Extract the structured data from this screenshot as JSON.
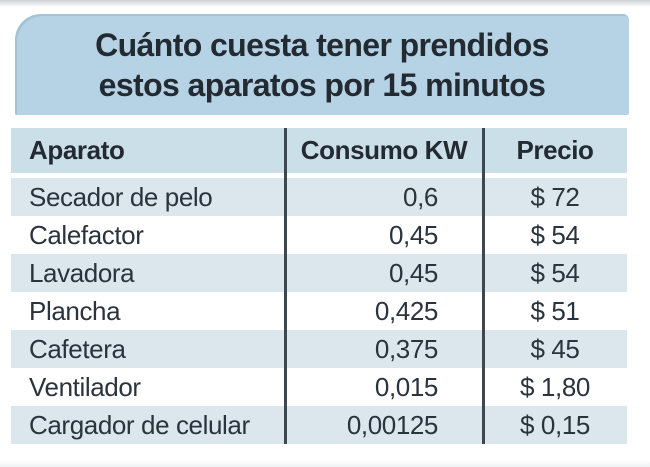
{
  "title": {
    "line1": "Cuánto cuesta tener prendidos",
    "line2": "estos aparatos por 15 minutos"
  },
  "table": {
    "headers": [
      "Aparato",
      "Consumo KW",
      "Precio"
    ],
    "rows": [
      {
        "aparato": "Secador de pelo",
        "consumo": "0,6",
        "precio": "$ 72"
      },
      {
        "aparato": "Calefactor",
        "consumo": "0,45",
        "precio": "$ 54"
      },
      {
        "aparato": "Lavadora",
        "consumo": "0,45",
        "precio": "$ 54"
      },
      {
        "aparato": "Plancha",
        "consumo": "0,425",
        "precio": "$ 51"
      },
      {
        "aparato": "Cafetera",
        "consumo": "0,375",
        "precio": "$ 45"
      },
      {
        "aparato": "Ventilador",
        "consumo": "0,015",
        "precio": "$ 1,80"
      },
      {
        "aparato": "Cargador de celular",
        "consumo": "0,00125",
        "precio": "$ 0,15"
      }
    ]
  },
  "colors": {
    "title_bg": "#b5d3e4",
    "header_bg": "#cbdfe9",
    "row_alt_bg": "#dbe6ed",
    "row_bg": "#ffffff",
    "text_dark": "#232a32",
    "divider": "#3d4750"
  },
  "chart_data": {
    "type": "table",
    "title": "Cuánto cuesta tener prendidos estos aparatos por 15 minutos",
    "columns": [
      "Aparato",
      "Consumo KW",
      "Precio"
    ],
    "rows": [
      [
        "Secador de pelo",
        "0,6",
        "$ 72"
      ],
      [
        "Calefactor",
        "0,45",
        "$ 54"
      ],
      [
        "Lavadora",
        "0,45",
        "$ 54"
      ],
      [
        "Plancha",
        "0,425",
        "$ 51"
      ],
      [
        "Cafetera",
        "0,375",
        "$ 45"
      ],
      [
        "Ventilador",
        "0,015",
        "$ 1,80"
      ],
      [
        "Cargador de celular",
        "0,00125",
        "$ 0,15"
      ]
    ],
    "units": {
      "consumo": "KW per 15 minutos",
      "precio": "pesos"
    },
    "consumo_values": [
      0.6,
      0.45,
      0.45,
      0.425,
      0.375,
      0.015,
      0.00125
    ],
    "precio_values": [
      72,
      54,
      54,
      51,
      45,
      1.8,
      0.15
    ]
  }
}
